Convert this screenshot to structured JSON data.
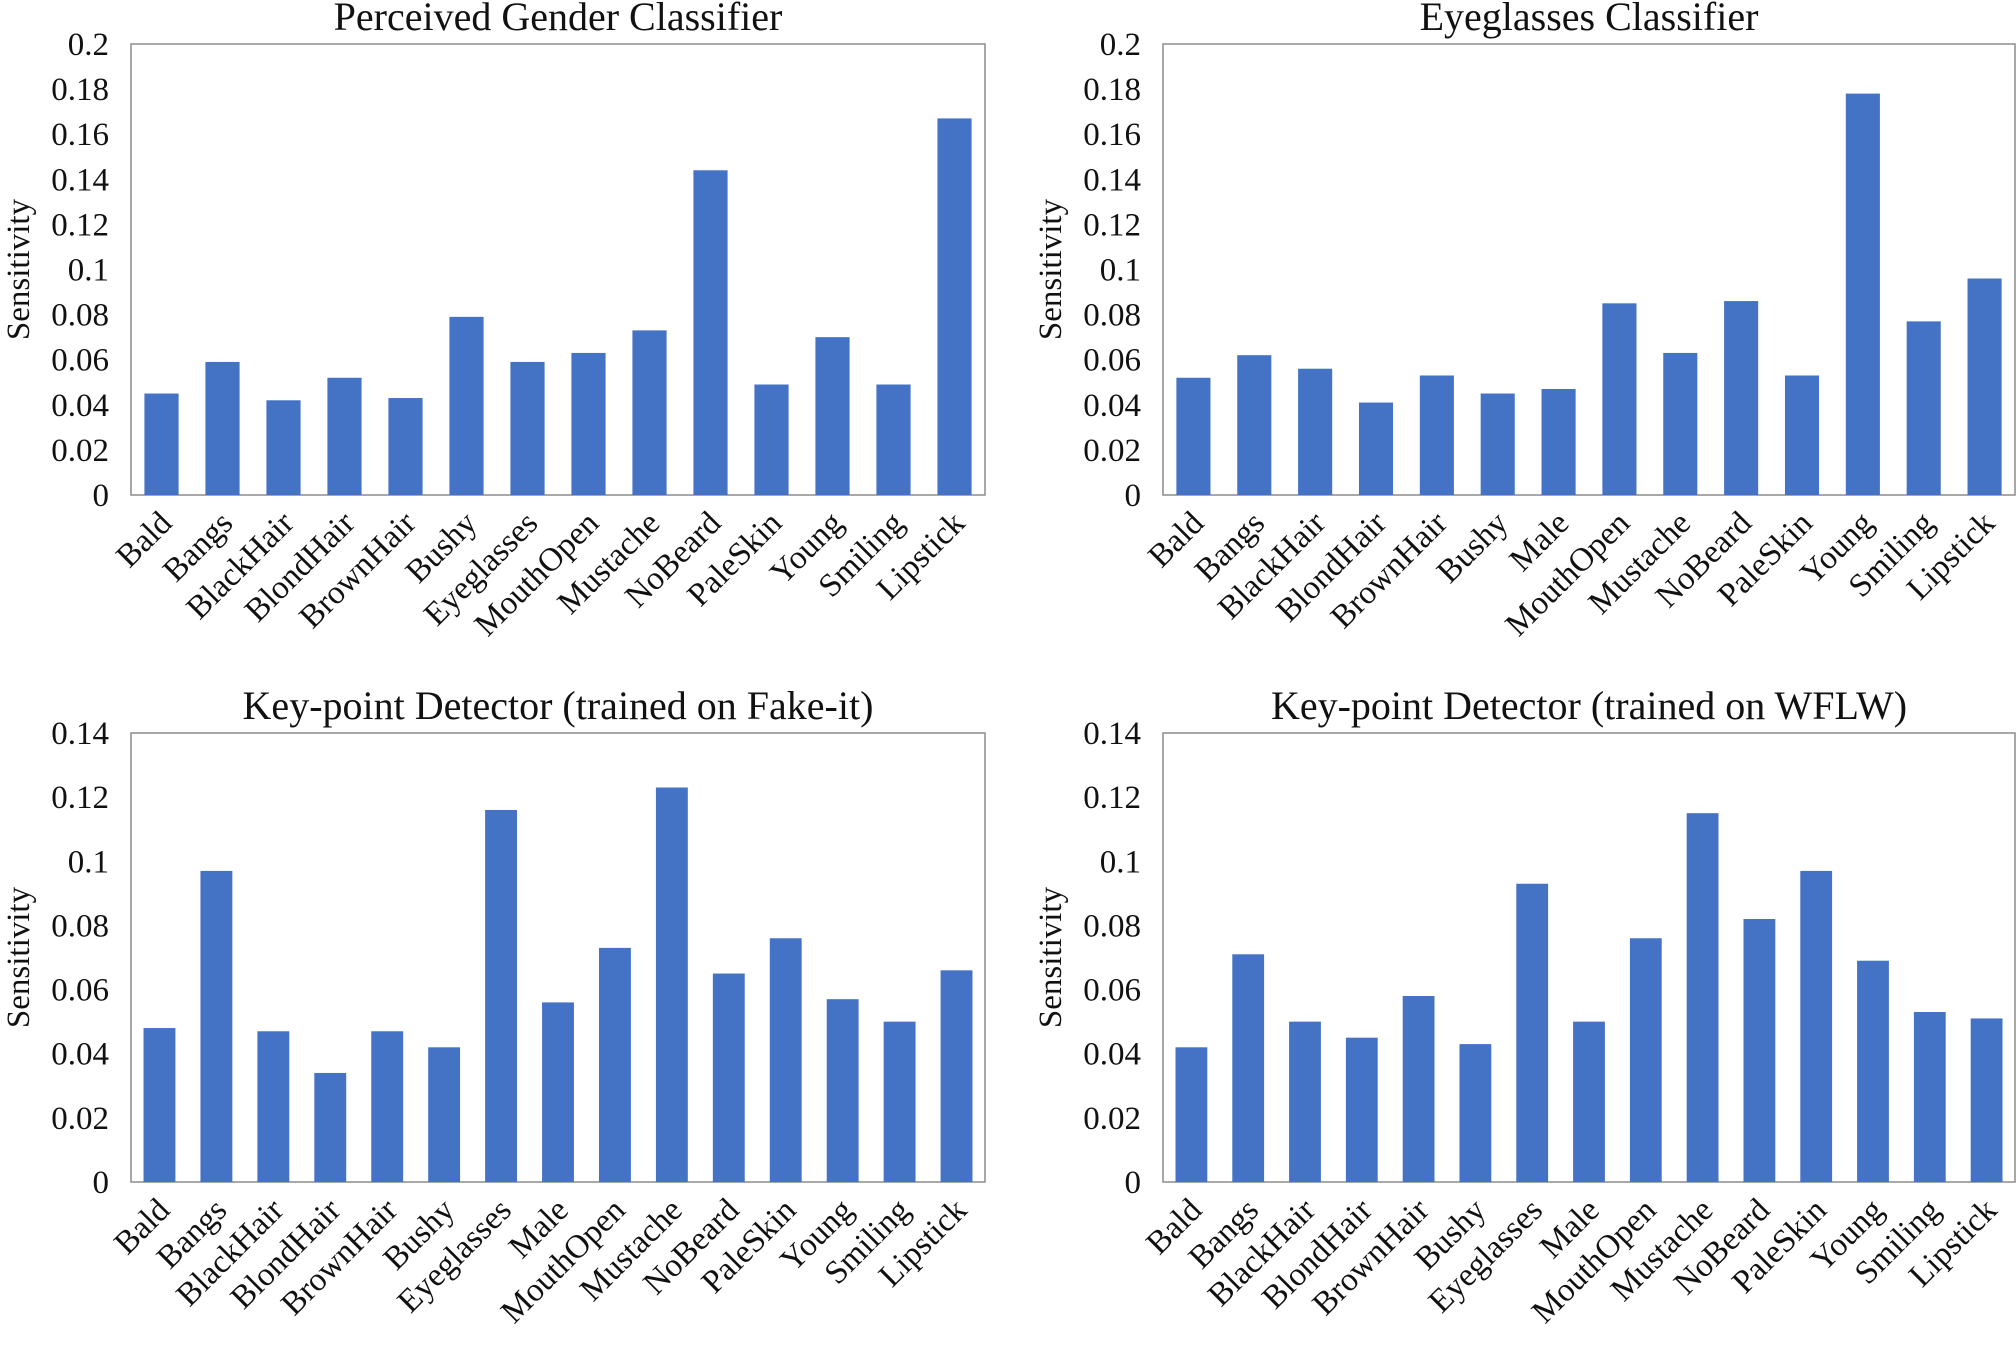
{
  "chart_data": [
    {
      "type": "bar",
      "title": "Perceived Gender Classifier",
      "xlabel": "",
      "ylabel": "Sensitivity",
      "ylim": [
        0,
        0.2
      ],
      "yticks": [
        "0",
        "0.02",
        "0.04",
        "0.06",
        "0.08",
        "0.1",
        "0.12",
        "0.14",
        "0.16",
        "0.18",
        "0.2"
      ],
      "categories": [
        "Bald",
        "Bangs",
        "BlackHair",
        "BlondHair",
        "BrownHair",
        "Bushy",
        "Eyeglasses",
        "MouthOpen",
        "Mustache",
        "NoBeard",
        "PaleSkin",
        "Young",
        "Smiling",
        "Lipstick"
      ],
      "values": [
        0.045,
        0.059,
        0.042,
        0.052,
        0.043,
        0.079,
        0.059,
        0.063,
        0.073,
        0.144,
        0.049,
        0.07,
        0.049,
        0.167
      ],
      "color": "#4472c4",
      "grid": false,
      "legend": "none"
    },
    {
      "type": "bar",
      "title": "Eyeglasses Classifier",
      "xlabel": "",
      "ylabel": "Sensitivity",
      "ylim": [
        0,
        0.2
      ],
      "yticks": [
        "0",
        "0.02",
        "0.04",
        "0.06",
        "0.08",
        "0.1",
        "0.12",
        "0.14",
        "0.16",
        "0.18",
        "0.2"
      ],
      "categories": [
        "Bald",
        "Bangs",
        "BlackHair",
        "BlondHair",
        "BrownHair",
        "Bushy",
        "Male",
        "MouthOpen",
        "Mustache",
        "NoBeard",
        "PaleSkin",
        "Young",
        "Smiling",
        "Lipstick"
      ],
      "values": [
        0.052,
        0.062,
        0.056,
        0.041,
        0.053,
        0.045,
        0.047,
        0.085,
        0.063,
        0.086,
        0.053,
        0.178,
        0.077,
        0.096
      ],
      "color": "#4472c4",
      "grid": false,
      "legend": "none"
    },
    {
      "type": "bar",
      "title": "Key-point Detector (trained on Fake-it)",
      "xlabel": "",
      "ylabel": "Sensitivity",
      "ylim": [
        0,
        0.14
      ],
      "yticks": [
        "0",
        "0.02",
        "0.04",
        "0.06",
        "0.08",
        "0.1",
        "0.12",
        "0.14"
      ],
      "categories": [
        "Bald",
        "Bangs",
        "BlackHair",
        "BlondHair",
        "BrownHair",
        "Bushy",
        "Eyeglasses",
        "Male",
        "MouthOpen",
        "Mustache",
        "NoBeard",
        "PaleSkin",
        "Young",
        "Smiling",
        "Lipstick"
      ],
      "values": [
        0.048,
        0.097,
        0.047,
        0.034,
        0.047,
        0.042,
        0.116,
        0.056,
        0.073,
        0.123,
        0.065,
        0.076,
        0.057,
        0.05,
        0.066
      ],
      "color": "#4472c4",
      "grid": false,
      "legend": "none"
    },
    {
      "type": "bar",
      "title": "Key-point Detector (trained on WFLW)",
      "xlabel": "",
      "ylabel": "Sensitivity",
      "ylim": [
        0,
        0.14
      ],
      "yticks": [
        "0",
        "0.02",
        "0.04",
        "0.06",
        "0.08",
        "0.1",
        "0.12",
        "0.14"
      ],
      "categories": [
        "Bald",
        "Bangs",
        "BlackHair",
        "BlondHair",
        "BrownHair",
        "Bushy",
        "Eyeglasses",
        "Male",
        "MouthOpen",
        "Mustache",
        "NoBeard",
        "PaleSkin",
        "Young",
        "Smiling",
        "Lipstick"
      ],
      "values": [
        0.042,
        0.071,
        0.05,
        0.045,
        0.058,
        0.043,
        0.093,
        0.05,
        0.076,
        0.115,
        0.082,
        0.097,
        0.069,
        0.053,
        0.051
      ],
      "color": "#4472c4",
      "grid": false,
      "legend": "none"
    }
  ]
}
